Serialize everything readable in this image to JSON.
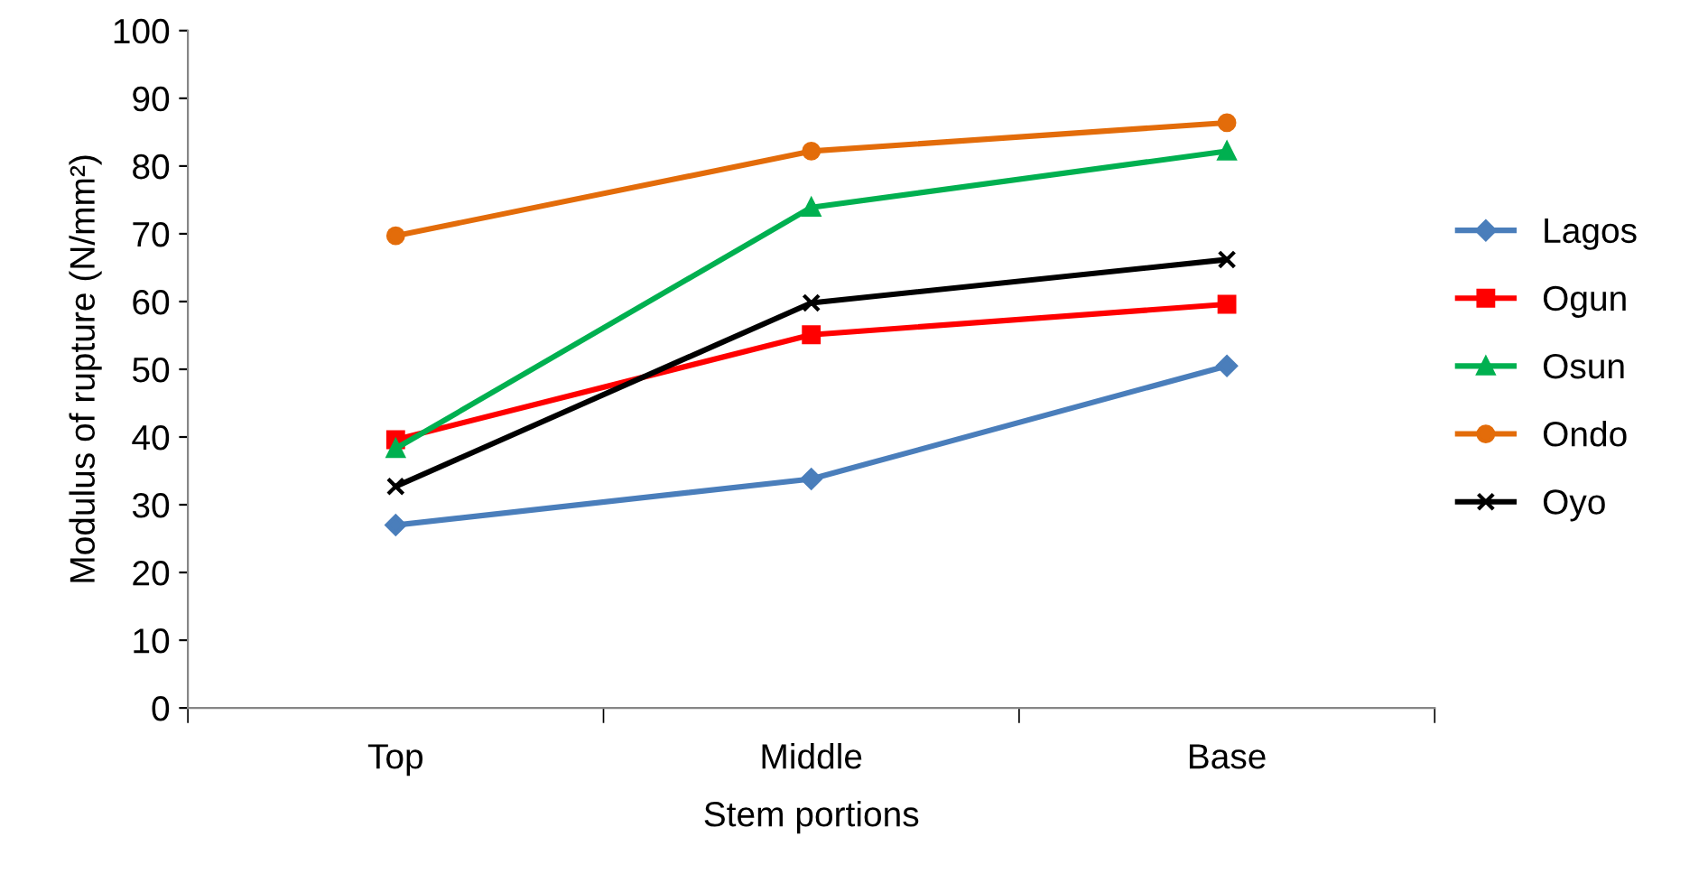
{
  "chart_data": {
    "type": "line",
    "xlabel": "Stem portions",
    "ylabel": "Modulus of rupture (N/mm²)",
    "categories": [
      "Top",
      "Middle",
      "Base"
    ],
    "series": [
      {
        "name": "Lagos",
        "color": "#4a7ebb",
        "marker": "diamond",
        "values": [
          27,
          33.8,
          50.5
        ]
      },
      {
        "name": "Ogun",
        "color": "#ff0000",
        "marker": "square",
        "values": [
          39.6,
          55.1,
          59.6
        ]
      },
      {
        "name": "Osun",
        "color": "#00b050",
        "marker": "triangle",
        "values": [
          38.3,
          73.9,
          82.2
        ]
      },
      {
        "name": "Ondo",
        "color": "#e36c0a",
        "marker": "circle",
        "values": [
          69.7,
          82.2,
          86.4
        ]
      },
      {
        "name": "Oyo",
        "color": "#000000",
        "marker": "cross",
        "values": [
          32.7,
          59.8,
          66.2
        ]
      }
    ],
    "ylim": [
      0,
      100
    ],
    "yticks": [
      0,
      10,
      20,
      30,
      40,
      50,
      60,
      70,
      80,
      90,
      100
    ],
    "grid": false,
    "legend": "right",
    "line_style": "solid"
  }
}
